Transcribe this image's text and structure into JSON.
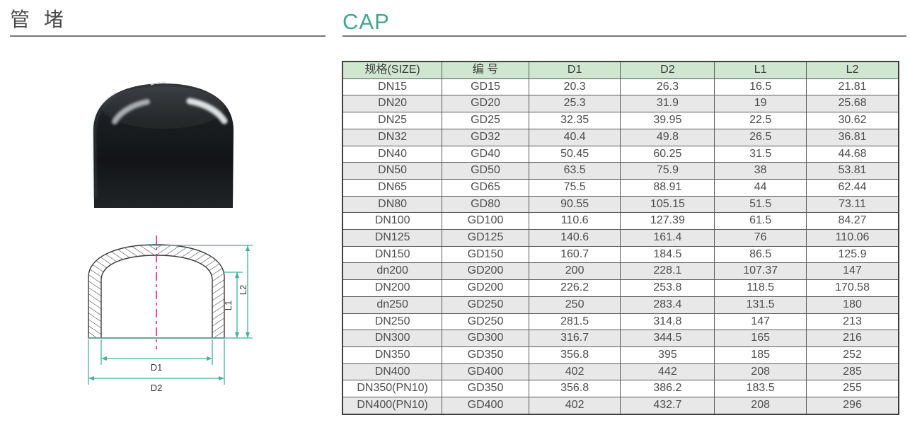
{
  "page": {
    "title_cn": "管 堵",
    "title_en": "CAP"
  },
  "colors": {
    "accent_teal": "#3fa590",
    "table_header_bg": "#cfe7d0",
    "table_row_alt": "#e8e8e8",
    "table_border": "#3e3e3e",
    "dimension_line": "#45b09c",
    "centerline_magenta": "#e91e8c",
    "product_body": "#17191c"
  },
  "drawing_labels": {
    "d1": "D1",
    "d2": "D2",
    "l1": "L1",
    "l2": "L2"
  },
  "table": {
    "headers": [
      "规格(SIZE)",
      "编  号",
      "D1",
      "D2",
      "L1",
      "L2"
    ],
    "rows": [
      [
        "DN15",
        "GD15",
        "20.3",
        "26.3",
        "16.5",
        "21.81"
      ],
      [
        "DN20",
        "GD20",
        "25.3",
        "31.9",
        "19",
        "25.68"
      ],
      [
        "DN25",
        "GD25",
        "32.35",
        "39.95",
        "22.5",
        "30.62"
      ],
      [
        "DN32",
        "GD32",
        "40.4",
        "49.8",
        "26.5",
        "36.81"
      ],
      [
        "DN40",
        "GD40",
        "50.45",
        "60.25",
        "31.5",
        "44.68"
      ],
      [
        "DN50",
        "GD50",
        "63.5",
        "75.9",
        "38",
        "53.81"
      ],
      [
        "DN65",
        "GD65",
        "75.5",
        "88.91",
        "44",
        "62.44"
      ],
      [
        "DN80",
        "GD80",
        "90.55",
        "105.15",
        "51.5",
        "73.11"
      ],
      [
        "DN100",
        "GD100",
        "110.6",
        "127.39",
        "61.5",
        "84.27"
      ],
      [
        "DN125",
        "GD125",
        "140.6",
        "161.4",
        "76",
        "110.06"
      ],
      [
        "DN150",
        "GD150",
        "160.7",
        "184.5",
        "86.5",
        "125.9"
      ],
      [
        "dn200",
        "GD200",
        "200",
        "228.1",
        "107.37",
        "147"
      ],
      [
        "DN200",
        "GD200",
        "226.2",
        "253.8",
        "118.5",
        "170.58"
      ],
      [
        "dn250",
        "GD250",
        "250",
        "283.4",
        "131.5",
        "180"
      ],
      [
        "DN250",
        "GD250",
        "281.5",
        "314.8",
        "147",
        "213"
      ],
      [
        "DN300",
        "GD300",
        "316.7",
        "344.5",
        "165",
        "216"
      ],
      [
        "DN350",
        "GD350",
        "356.8",
        "395",
        "185",
        "252"
      ],
      [
        "DN400",
        "GD400",
        "402",
        "442",
        "208",
        "285"
      ],
      [
        "DN350(PN10)",
        "GD350",
        "356.8",
        "386.2",
        "183.5",
        "255"
      ],
      [
        "DN400(PN10)",
        "GD400",
        "402",
        "432.7",
        "208",
        "296"
      ]
    ]
  }
}
